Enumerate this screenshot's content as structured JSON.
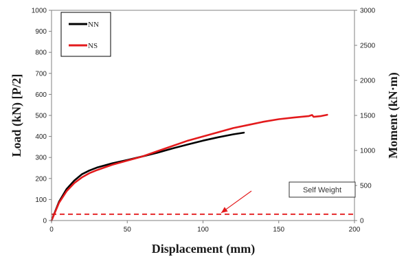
{
  "chart_data": {
    "type": "line",
    "title": "",
    "xlabel": "Displacement (mm)",
    "ylabel": "Load (kN) [P/2]",
    "ylabel_right": "Moment (kN·m)",
    "xlim": [
      0,
      200
    ],
    "ylim": [
      0,
      1000
    ],
    "ylim_right": [
      0,
      3000
    ],
    "x_ticks": [
      0,
      50,
      100,
      150,
      200
    ],
    "y_ticks": [
      0,
      100,
      200,
      300,
      400,
      500,
      600,
      700,
      800,
      900,
      1000
    ],
    "y_right_ticks": [
      0,
      500,
      1000,
      1500,
      2000,
      2500,
      3000
    ],
    "legend_position": "top-left",
    "grid": false,
    "series": [
      {
        "name": "NN",
        "color": "#000000",
        "points": [
          [
            0,
            0
          ],
          [
            5,
            90
          ],
          [
            10,
            150
          ],
          [
            15,
            190
          ],
          [
            20,
            220
          ],
          [
            25,
            238
          ],
          [
            30,
            252
          ],
          [
            40,
            272
          ],
          [
            50,
            288
          ],
          [
            60,
            305
          ],
          [
            70,
            323
          ],
          [
            80,
            343
          ],
          [
            90,
            362
          ],
          [
            100,
            380
          ],
          [
            110,
            396
          ],
          [
            120,
            410
          ],
          [
            127,
            418
          ]
        ]
      },
      {
        "name": "NS",
        "color": "#e31a1c",
        "points": [
          [
            0,
            0
          ],
          [
            5,
            85
          ],
          [
            10,
            140
          ],
          [
            15,
            178
          ],
          [
            20,
            205
          ],
          [
            25,
            225
          ],
          [
            30,
            240
          ],
          [
            40,
            265
          ],
          [
            50,
            285
          ],
          [
            60,
            305
          ],
          [
            70,
            330
          ],
          [
            80,
            355
          ],
          [
            90,
            380
          ],
          [
            100,
            400
          ],
          [
            110,
            420
          ],
          [
            120,
            440
          ],
          [
            130,
            455
          ],
          [
            140,
            470
          ],
          [
            150,
            482
          ],
          [
            160,
            490
          ],
          [
            170,
            497
          ],
          [
            172,
            502
          ],
          [
            173,
            493
          ],
          [
            178,
            497
          ],
          [
            182,
            503
          ]
        ]
      }
    ],
    "reference_line": {
      "name": "Self Weight",
      "y": 30,
      "color": "#e31a1c",
      "style": "dashed"
    },
    "annotation": {
      "text": "Self Weight",
      "target_x": 112,
      "target_y": 30
    }
  }
}
